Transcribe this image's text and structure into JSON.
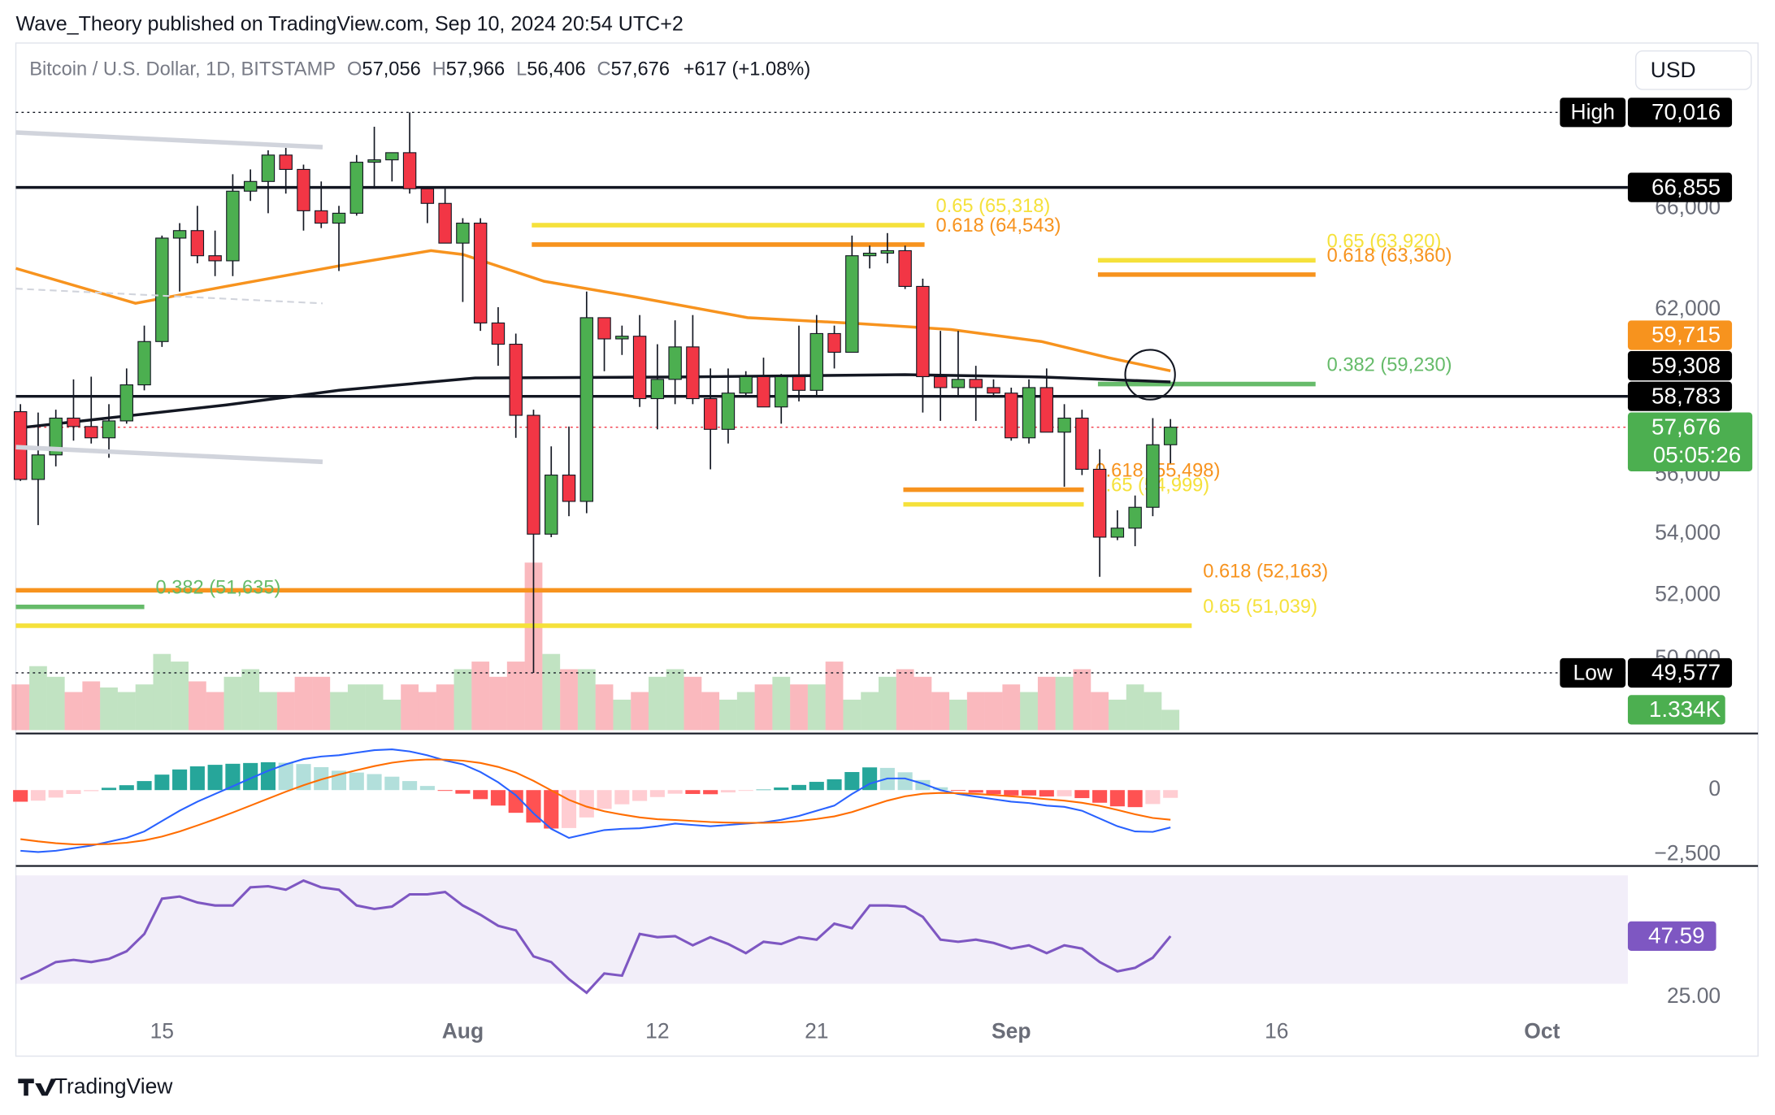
{
  "header": {
    "publisher": "Wave_Theory published on TradingView.com, Sep 10, 2024 20:54 UTC+2"
  },
  "footer": {
    "brand": "TradingView"
  },
  "chart_data": [
    {
      "type": "candlestick",
      "title": "Bitcoin / U.S. Dollar, 1D, BITSTAMP",
      "ohlc": [
        {
          "key": "O",
          "label": "57,056"
        },
        {
          "key": "H",
          "label": "57,966"
        },
        {
          "key": "L",
          "label": "56,406"
        },
        {
          "key": "C",
          "label": "57,676"
        }
      ],
      "change": "+617 (+1.08%)",
      "currency": "USD",
      "log_scale": true,
      "xlim": [
        -0.26,
        90.85
      ],
      "xticks": [
        {
          "value": 8,
          "label": "15"
        },
        {
          "value": 25,
          "label": "Aug"
        },
        {
          "value": 36,
          "label": "12"
        },
        {
          "value": 45,
          "label": "21"
        },
        {
          "value": 56,
          "label": "Sep"
        },
        {
          "value": 71,
          "label": "16"
        },
        {
          "value": 86,
          "label": "Oct"
        }
      ],
      "ylim": [
        47760,
        72970
      ],
      "yticks": [
        {
          "value": 66000,
          "label": "66,000"
        },
        {
          "value": 62000,
          "label": "62,000"
        },
        {
          "value": 56000,
          "label": "56,000"
        },
        {
          "value": 54000,
          "label": "54,000"
        },
        {
          "value": 52000,
          "label": "52,000"
        },
        {
          "value": 50000,
          "label": "50,000"
        }
      ],
      "up_color": "#4caf50",
      "down_color": "#f23645",
      "open": [
        58230,
        55850,
        56700,
        58000,
        57700,
        57300,
        57900,
        59200,
        60800,
        64800,
        65100,
        64100,
        63900,
        66700,
        67100,
        68200,
        67600,
        65900,
        65400,
        65800,
        67900,
        68000,
        68300,
        66800,
        66200,
        64600,
        65400,
        61500,
        60700,
        58100,
        54000,
        56000,
        55100,
        61700,
        60900,
        61000,
        58700,
        59400,
        60600,
        58700,
        57600,
        58900,
        59500,
        58400,
        59500,
        59000,
        61100,
        60400,
        64100,
        64200,
        64300,
        62900,
        59500,
        59100,
        59400,
        59100,
        58900,
        57300,
        59100,
        57500,
        58000,
        56200,
        53900,
        54200,
        54900,
        57056
      ],
      "high": [
        58500,
        58200,
        58300,
        59400,
        59500,
        58500,
        59800,
        61400,
        64900,
        65400,
        66100,
        65100,
        67400,
        67600,
        68400,
        68500,
        67800,
        67100,
        66100,
        68200,
        69400,
        68300,
        70016,
        66900,
        66800,
        65600,
        65600,
        62100,
        61100,
        58300,
        57000,
        57700,
        62700,
        61700,
        61400,
        61800,
        60700,
        61600,
        61800,
        59800,
        59800,
        59700,
        60200,
        59600,
        61400,
        61800,
        61400,
        64900,
        64500,
        65000,
        64500,
        63200,
        61200,
        61200,
        59900,
        59400,
        59100,
        59400,
        59800,
        58500,
        58300,
        56900,
        54800,
        55300,
        58000,
        57966
      ],
      "low": [
        55800,
        54300,
        56300,
        57200,
        57100,
        56600,
        57800,
        59000,
        60600,
        62700,
        63800,
        63300,
        63300,
        66300,
        65800,
        66600,
        65100,
        65200,
        63500,
        65700,
        66800,
        67100,
        66600,
        65400,
        64600,
        62300,
        61200,
        59900,
        57300,
        49577,
        53900,
        54600,
        54700,
        59700,
        60300,
        58400,
        57600,
        58500,
        58500,
        56200,
        57100,
        58800,
        58400,
        57800,
        58600,
        58800,
        59800,
        60400,
        63600,
        63800,
        62800,
        58200,
        57900,
        58800,
        57900,
        58800,
        57200,
        57100,
        57500,
        55600,
        56000,
        52600,
        53800,
        53600,
        54600,
        56406
      ],
      "close": [
        55850,
        56700,
        58000,
        57700,
        57300,
        57900,
        59200,
        60800,
        64800,
        65100,
        64100,
        63900,
        66700,
        67100,
        68200,
        67600,
        65900,
        65400,
        65800,
        67900,
        68000,
        68300,
        66800,
        66200,
        64600,
        65400,
        61500,
        60700,
        58100,
        54000,
        56000,
        55100,
        61700,
        60900,
        61000,
        58700,
        59400,
        60600,
        58700,
        57600,
        58900,
        59500,
        58400,
        59500,
        59000,
        61100,
        60400,
        64100,
        64200,
        64300,
        62900,
        59500,
        59100,
        59400,
        59100,
        58900,
        57300,
        59100,
        57500,
        58000,
        56200,
        53900,
        54200,
        54900,
        57056,
        57676
      ],
      "volume": {
        "values": [
          3.0,
          4.2,
          3.5,
          2.5,
          3.2,
          2.8,
          2.5,
          3.0,
          5.0,
          4.5,
          3.2,
          2.5,
          3.5,
          4.0,
          2.5,
          2.5,
          3.5,
          3.5,
          2.5,
          3.0,
          3.0,
          2.0,
          3.0,
          2.5,
          3.0,
          4.0,
          4.5,
          3.5,
          4.5,
          11.0,
          5.0,
          4.0,
          4.0,
          3.0,
          2.0,
          2.5,
          3.5,
          4.0,
          3.5,
          2.5,
          2.0,
          2.5,
          3.0,
          3.5,
          3.0,
          3.0,
          4.5,
          2.0,
          2.5,
          3.5,
          4.0,
          3.5,
          2.5,
          2.0,
          2.5,
          2.5,
          3.0,
          2.5,
          3.5,
          3.5,
          4.0,
          2.5,
          2.0,
          3.0,
          2.5,
          1.334
        ],
        "value_labels": [
          null,
          null,
          null,
          null,
          null,
          null,
          null,
          null,
          null,
          null,
          null,
          null,
          null,
          null,
          null,
          null,
          null,
          null,
          null,
          null,
          null,
          null,
          null,
          null,
          null,
          null,
          null,
          null,
          null,
          null,
          null,
          null,
          null,
          null,
          null,
          null,
          null,
          null,
          null,
          null,
          null,
          null,
          null,
          null,
          null,
          null,
          null,
          null,
          null,
          null,
          null,
          null,
          null,
          null,
          null,
          null,
          null,
          null,
          null,
          null,
          null,
          null,
          null,
          null,
          null,
          "1.334K"
        ],
        "label_color": "#4caf50"
      },
      "moving_averages": [
        {
          "color": "#f7931e",
          "x": [
            -0.26,
            6.5,
            11.6,
            18,
            23.2,
            25,
            29.6,
            34.7,
            41.1,
            47.5,
            52.6,
            57.7,
            61.5,
            65
          ],
          "values": [
            63600,
            62250,
            62900,
            63700,
            64300,
            64150,
            63100,
            62500,
            61700,
            61470,
            61250,
            60800,
            60200,
            59715
          ]
        },
        {
          "color": "#131722",
          "x": [
            -0.26,
            11.6,
            18,
            25.7,
            37.3,
            50,
            57.7,
            65
          ],
          "values": [
            57640,
            58470,
            59000,
            59450,
            59490,
            59570,
            59490,
            59308
          ]
        }
      ],
      "fib_levels": [
        {
          "label": "0.65 (65,318)",
          "value": 65318,
          "color": "#f5e13b",
          "start": 28.9,
          "end": 51.1
        },
        {
          "label": "0.618 (64,543)",
          "value": 64543,
          "color": "#f7931e",
          "start": 28.9,
          "end": 51.1
        },
        {
          "label": "0.65 (63,920)",
          "value": 63920,
          "color": "#f5e13b",
          "start": 60.9,
          "end": 73.2
        },
        {
          "label": "0.618 (63,360)",
          "value": 63360,
          "color": "#f7931e",
          "start": 60.9,
          "end": 73.2
        },
        {
          "label": "0.382 (59,230)",
          "value": 59230,
          "color": "#66bb6a",
          "start": 60.9,
          "end": 73.2
        },
        {
          "label": "0.618 (55,498)",
          "value": 55498,
          "color": "#f7931e",
          "start": 49.9,
          "end": 60.1
        },
        {
          "label": "0.65 (54,999)",
          "value": 54999,
          "color": "#f5e13b",
          "start": 49.9,
          "end": 60.1
        },
        {
          "label": "0.618 (52,163)",
          "value": 52163,
          "color": "#f7931e",
          "start": -0.26,
          "end": 66.2
        },
        {
          "label": "0.65 (51,039)",
          "value": 51039,
          "color": "#f5e13b",
          "start": -0.26,
          "end": 66.2
        },
        {
          "label": "0.382 (51,635)",
          "value": 51635,
          "color": "#66bb6a",
          "start": -0.26,
          "end": 7.0
        }
      ],
      "price_labels": [
        {
          "value": 70016,
          "label": "70,016",
          "tag": "High",
          "color": "#000000",
          "line": "dotted"
        },
        {
          "value": 66855,
          "label": "66,855",
          "color": "#000000",
          "line": "solid"
        },
        {
          "value": 59715,
          "label": "59,715",
          "color": "#f7931e"
        },
        {
          "value": 59308,
          "label": "59,308",
          "color": "#000000"
        },
        {
          "value": 58783,
          "label": "58,783",
          "color": "#000000",
          "line": "solid"
        },
        {
          "value": 57676,
          "label": "57,676",
          "sub": "05:05:26",
          "color": "#4caf50",
          "line": "dotted"
        },
        {
          "value": 49577,
          "label": "49,577",
          "tag": "Low",
          "color": "#000000",
          "line": "dotted"
        }
      ]
    },
    {
      "type": "macd",
      "ylim": [
        -2940,
        2105
      ],
      "yticks": [
        0,
        {
          "value": -2500,
          "label": "−2,500"
        }
      ],
      "macd": {
        "color": "#2962ff",
        "values": [
          -2350,
          -2400,
          -2350,
          -2250,
          -2150,
          -2000,
          -1850,
          -1600,
          -1200,
          -800,
          -450,
          -150,
          150,
          450,
          750,
          1000,
          1200,
          1300,
          1350,
          1450,
          1550,
          1580,
          1500,
          1350,
          1150,
          1000,
          700,
          300,
          -200,
          -900,
          -1500,
          -1850,
          -1700,
          -1550,
          -1500,
          -1480,
          -1400,
          -1300,
          -1350,
          -1400,
          -1350,
          -1300,
          -1250,
          -1150,
          -1000,
          -800,
          -600,
          -150,
          250,
          450,
          450,
          250,
          0,
          -150,
          -250,
          -350,
          -450,
          -500,
          -600,
          -650,
          -800,
          -1100,
          -1400,
          -1600,
          -1620,
          -1450
        ]
      },
      "signal": {
        "color": "#ff6d00",
        "values": [
          -1900,
          -1990,
          -2060,
          -2100,
          -2110,
          -2090,
          -2040,
          -1950,
          -1800,
          -1600,
          -1370,
          -1130,
          -870,
          -600,
          -330,
          -60,
          190,
          410,
          600,
          770,
          930,
          1060,
          1150,
          1190,
          1180,
          1140,
          1050,
          900,
          680,
          360,
          -10,
          -380,
          -640,
          -820,
          -950,
          -1060,
          -1130,
          -1160,
          -1200,
          -1240,
          -1260,
          -1270,
          -1270,
          -1250,
          -1200,
          -1120,
          -1020,
          -850,
          -630,
          -410,
          -240,
          -140,
          -110,
          -120,
          -150,
          -190,
          -240,
          -290,
          -350,
          -410,
          -490,
          -610,
          -770,
          -940,
          -1080,
          -1150
        ]
      },
      "histogram": {
        "values": [
          -450,
          -410,
          -290,
          -150,
          -40,
          90,
          190,
          350,
          600,
          800,
          920,
          980,
          1020,
          1050,
          1080,
          1060,
          1010,
          890,
          750,
          680,
          620,
          520,
          350,
          160,
          -30,
          -140,
          -350,
          -600,
          -880,
          -1260,
          -1490,
          -1470,
          -1060,
          -730,
          -550,
          -420,
          -270,
          -140,
          -150,
          -160,
          -90,
          -30,
          20,
          100,
          200,
          320,
          420,
          700,
          880,
          860,
          690,
          390,
          110,
          -30,
          -100,
          -160,
          -210,
          -210,
          -250,
          -240,
          -310,
          -490,
          -630,
          -660,
          -540,
          -300
        ]
      }
    },
    {
      "type": "line",
      "ylim": [
        15,
        71.4
      ],
      "yticks": [
        {
          "value": 25,
          "label": "25.00"
        }
      ],
      "band": [
        30,
        70
      ],
      "color": "#7e57c2",
      "values": [
        31.7,
        34.6,
        38,
        38.8,
        38,
        39.2,
        42,
        48.4,
        61.4,
        62.2,
        60,
        58.9,
        58.9,
        65.6,
        66,
        64.7,
        68.1,
        65.6,
        64.7,
        58.9,
        57.6,
        58.5,
        63,
        63,
        63.9,
        58.9,
        55.5,
        51.4,
        49.7,
        40.1,
        38,
        31.7,
        26.7,
        33.8,
        33,
        48.4,
        47.2,
        47.6,
        44.2,
        47.2,
        44.7,
        41.3,
        45.5,
        44.7,
        47.2,
        46.3,
        52.2,
        50.5,
        58.9,
        58.9,
        58.5,
        54.7,
        46.3,
        45.5,
        46.3,
        45.1,
        43,
        44.2,
        41.3,
        44.2,
        43,
        38,
        34.6,
        35.9,
        39.6,
        47.59
      ]
    }
  ]
}
